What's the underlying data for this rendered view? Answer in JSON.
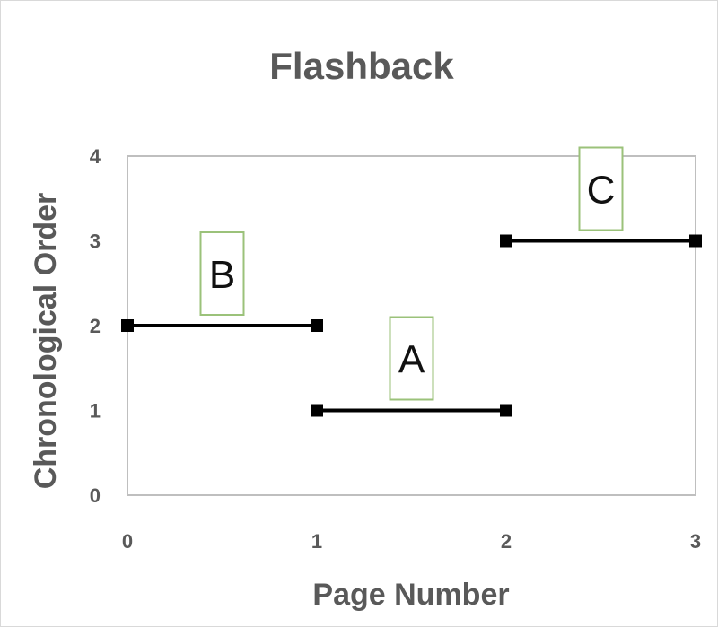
{
  "chart_data": {
    "type": "line",
    "title": "Flashback",
    "xlabel": "Page Number",
    "ylabel": "Chronological Order",
    "xlim": [
      0,
      3
    ],
    "ylim": [
      0,
      4
    ],
    "x_ticks": [
      "0",
      "1",
      "2",
      "3"
    ],
    "y_ticks": [
      "0",
      "1",
      "2",
      "3",
      "4"
    ],
    "grid": false,
    "series": [
      {
        "name": "B",
        "x": [
          0,
          1
        ],
        "y": [
          2,
          2
        ]
      },
      {
        "name": "A",
        "x": [
          1,
          2
        ],
        "y": [
          1,
          1
        ]
      },
      {
        "name": "C",
        "x": [
          2,
          3
        ],
        "y": [
          3,
          3
        ]
      }
    ],
    "colors": {
      "line": "#000000",
      "marker": "#000000",
      "label_box": "#9bc27a",
      "plot_border": "#bfbfbf",
      "text": "#595959"
    }
  }
}
